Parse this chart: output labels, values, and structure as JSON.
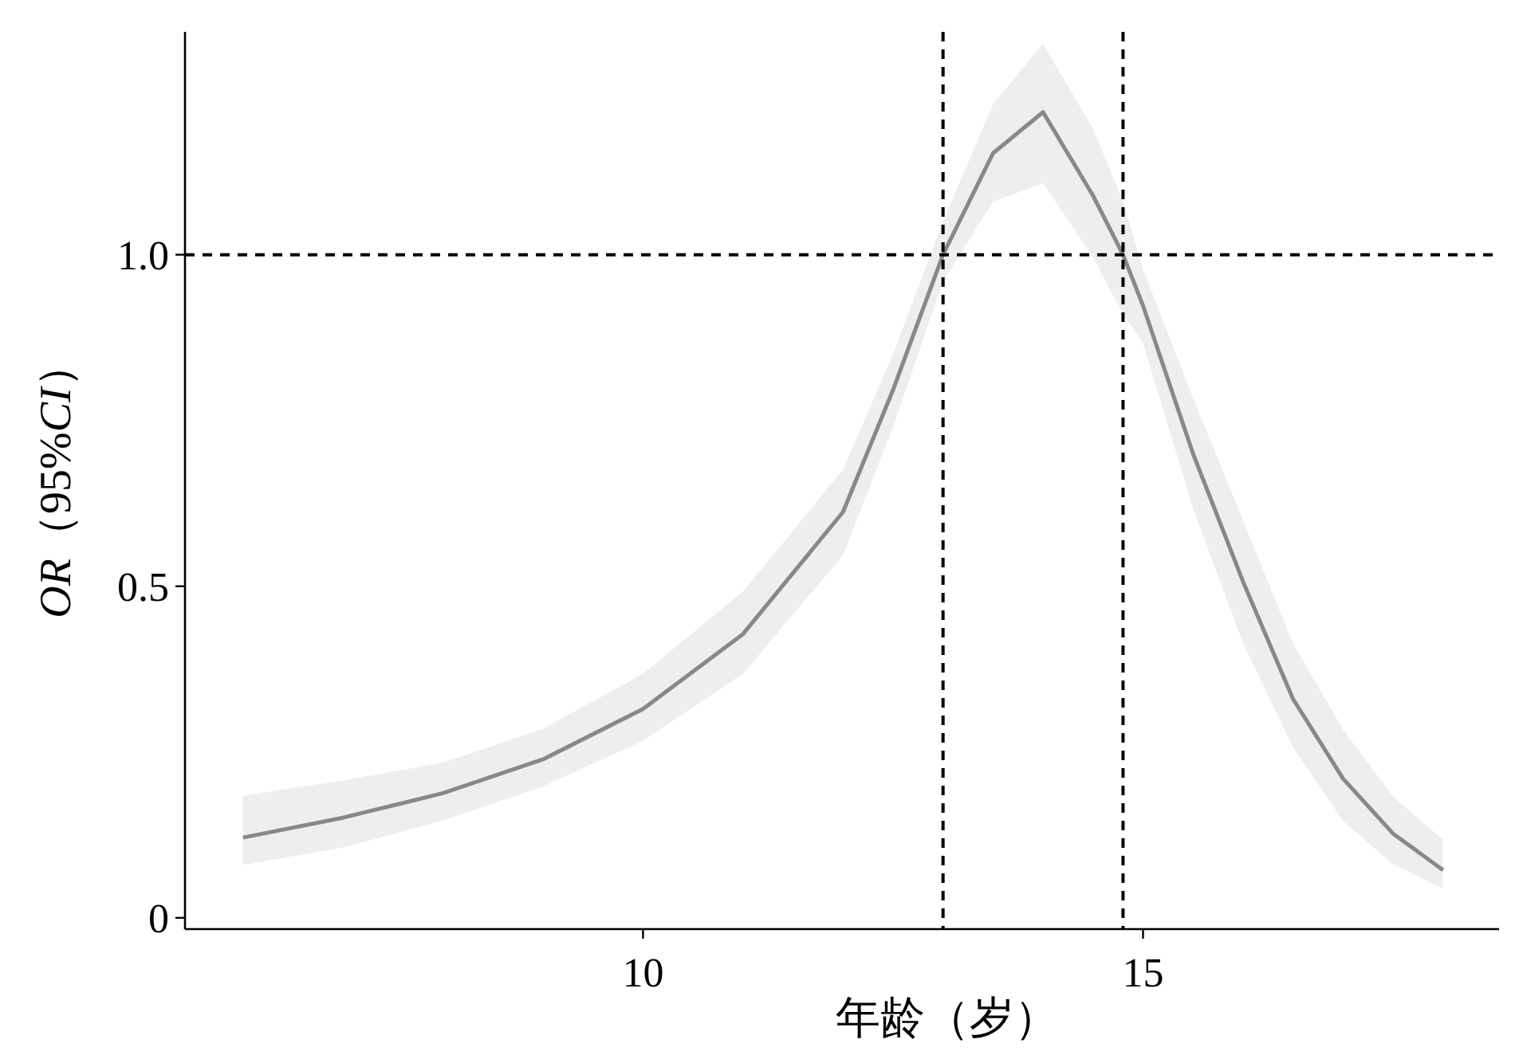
{
  "chart_data": {
    "type": "line",
    "xlabel": "年龄（岁）",
    "ylabel": "*OR*（95%*CI*）",
    "x": [
      6,
      7,
      8,
      9,
      10,
      11,
      12,
      12.5,
      13,
      13.5,
      14,
      14.5,
      14.8,
      15,
      15.5,
      16,
      16.5,
      17,
      17.5,
      18
    ],
    "series": [
      {
        "color": "#888888",
        "values": [
          0.121,
          0.151,
          0.188,
          0.239,
          0.315,
          0.428,
          0.612,
          0.796,
          1.0,
          1.153,
          1.215,
          1.089,
          1.0,
          0.923,
          0.7,
          0.507,
          0.33,
          0.21,
          0.127,
          0.072
        ],
        "lower": [
          0.08,
          0.106,
          0.147,
          0.198,
          0.267,
          0.368,
          0.547,
          0.74,
          0.96,
          1.08,
          1.108,
          0.996,
          0.91,
          0.867,
          0.617,
          0.414,
          0.257,
          0.146,
          0.081,
          0.044
        ],
        "upper": [
          0.184,
          0.207,
          0.234,
          0.285,
          0.368,
          0.492,
          0.676,
          0.85,
          1.05,
          1.227,
          1.318,
          1.19,
          1.08,
          0.978,
          0.784,
          0.599,
          0.414,
          0.284,
          0.183,
          0.118
        ]
      }
    ],
    "xlim": [
      5.42,
      18.56
    ],
    "ylim": [
      -0.017,
      1.336
    ],
    "xticks": [
      10,
      15
    ],
    "yticks": [
      0,
      {
        "value": 0.5,
        "label": "0.5"
      },
      {
        "value": 1,
        "label": "1.0"
      }
    ],
    "ref_lines": [
      {
        "axis": "y",
        "value": 1,
        "line_style": "dashed",
        "color": "#000000"
      },
      {
        "axis": "x",
        "value": 13,
        "line_style": "dashed",
        "color": "#000000"
      },
      {
        "axis": "x",
        "value": 14.8,
        "line_style": "dashed",
        "color": "#000000"
      }
    ],
    "grid": false,
    "marker": "none",
    "line_style": "solid"
  }
}
